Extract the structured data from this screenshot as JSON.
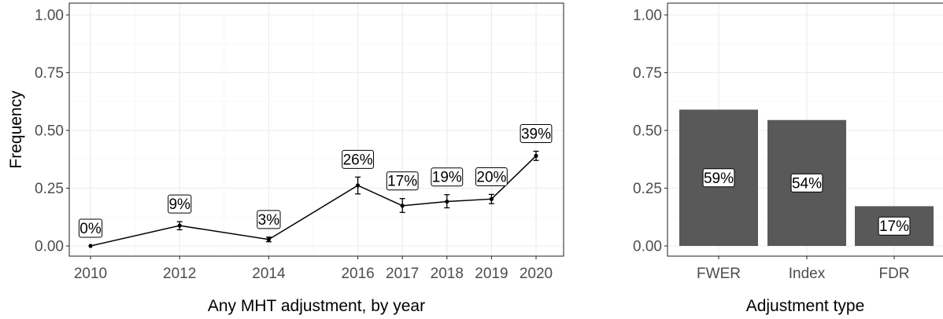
{
  "chart_data": [
    {
      "type": "line",
      "xlabel": "Any MHT adjustment, by year",
      "ylabel": "Frequency",
      "ylim": [
        0,
        1
      ],
      "xlim": [
        2010,
        2020
      ],
      "x_ticks": [
        "2010",
        "2012",
        "2014",
        "2016",
        "2017",
        "2018",
        "2019",
        "2020"
      ],
      "y_ticks": [
        "0.00",
        "0.25",
        "0.50",
        "0.75",
        "1.00"
      ],
      "grid": true,
      "series": [
        {
          "x": [
            2010,
            2012,
            2014,
            2016,
            2017,
            2018,
            2019,
            2020
          ],
          "values": [
            0.0,
            0.088,
            0.028,
            0.262,
            0.174,
            0.192,
            0.203,
            0.39
          ],
          "error_low": [
            0.0,
            0.07,
            0.018,
            0.225,
            0.145,
            0.165,
            0.183,
            0.37
          ],
          "error_high": [
            0.0,
            0.105,
            0.038,
            0.298,
            0.205,
            0.222,
            0.223,
            0.41
          ],
          "labels": [
            "0%",
            "9%",
            "3%",
            "26%",
            "17%",
            "19%",
            "20%",
            "39%"
          ]
        }
      ]
    },
    {
      "type": "bar",
      "xlabel": "Adjustment type",
      "ylabel": "",
      "ylim": [
        0,
        1
      ],
      "categories": [
        "FWER",
        "Index",
        "FDR"
      ],
      "values": [
        0.59,
        0.545,
        0.172
      ],
      "labels": [
        "59%",
        "54%",
        "17%"
      ],
      "y_ticks": [
        "0.00",
        "0.25",
        "0.50",
        "0.75",
        "1.00"
      ],
      "grid": true,
      "bar_color": "#595959"
    }
  ]
}
